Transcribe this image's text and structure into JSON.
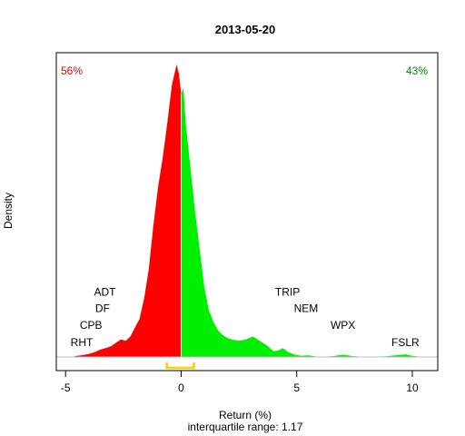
{
  "chart_data": {
    "type": "area",
    "title": "2013-05-20",
    "xlabel": "Return (%)",
    "ylabel": "Density",
    "subtitle": "interquartile range: 1.17",
    "xlim": [
      -5.4,
      11.1
    ],
    "xticks": [
      -5,
      0,
      5,
      10
    ],
    "left_share": "56%",
    "right_share": "43%",
    "colors": {
      "negative": "#ff0000",
      "positive": "#00ee00",
      "iqr": "#ffcc00",
      "left_share": "#dd0000",
      "right_share": "#008800"
    },
    "iqr": [
      -0.62,
      0.55
    ],
    "series": [
      {
        "x": [
          -4.6,
          -4.3,
          -4.0,
          -3.7,
          -3.5,
          -3.2,
          -3.0,
          -2.8,
          -2.6,
          -2.4,
          -2.2,
          -2.0,
          -1.8,
          -1.6,
          -1.4,
          -1.2,
          -1.0,
          -0.8,
          -0.6,
          -0.4,
          -0.2,
          -0.1,
          0.0,
          0.1,
          0.2,
          0.4,
          0.6,
          0.8,
          1.0,
          1.2,
          1.4,
          1.6,
          1.8,
          2.0,
          2.2,
          2.5,
          2.8,
          3.1,
          3.4,
          3.7,
          4.0,
          4.2,
          4.4,
          4.6,
          4.9,
          5.2,
          5.5,
          5.8,
          6.2,
          6.6,
          7.0,
          7.4,
          7.8,
          8.3,
          8.8,
          9.3,
          9.7,
          10.0,
          10.3
        ],
        "y": [
          0.003,
          0.006,
          0.01,
          0.018,
          0.025,
          0.032,
          0.038,
          0.05,
          0.06,
          0.055,
          0.07,
          0.1,
          0.13,
          0.2,
          0.3,
          0.45,
          0.58,
          0.68,
          0.8,
          0.93,
          1.0,
          0.97,
          0.9,
          0.92,
          0.8,
          0.65,
          0.5,
          0.37,
          0.24,
          0.16,
          0.12,
          0.09,
          0.075,
          0.065,
          0.06,
          0.055,
          0.06,
          0.07,
          0.055,
          0.04,
          0.02,
          0.022,
          0.03,
          0.018,
          0.008,
          0.004,
          0.006,
          0.002,
          0.001,
          0.003,
          0.008,
          0.003,
          0.001,
          0.001,
          0.002,
          0.006,
          0.009,
          0.004,
          0.001
        ]
      }
    ],
    "annotations": [
      {
        "text": "RHT",
        "x": -4.3,
        "y": 0.05
      },
      {
        "text": "CPB",
        "x": -3.9,
        "y": 0.108
      },
      {
        "text": "DF",
        "x": -3.4,
        "y": 0.166
      },
      {
        "text": "ADT",
        "x": -3.3,
        "y": 0.222
      },
      {
        "text": "TRIP",
        "x": 4.6,
        "y": 0.222
      },
      {
        "text": "NEM",
        "x": 5.4,
        "y": 0.166
      },
      {
        "text": "WPX",
        "x": 7.0,
        "y": 0.108
      },
      {
        "text": "FSLR",
        "x": 9.7,
        "y": 0.05
      }
    ]
  }
}
